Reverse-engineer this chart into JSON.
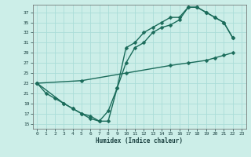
{
  "xlabel": "Humidex (Indice chaleur)",
  "bg_color": "#cceee8",
  "grid_color": "#aaddd8",
  "line_color": "#1a6b5a",
  "markersize": 2.5,
  "linewidth": 1.0,
  "xlim": [
    -0.5,
    23.5
  ],
  "ylim": [
    14.0,
    38.5
  ],
  "xticks": [
    0,
    1,
    2,
    3,
    4,
    5,
    6,
    7,
    8,
    9,
    10,
    11,
    12,
    13,
    14,
    15,
    16,
    17,
    18,
    19,
    20,
    21,
    22,
    23
  ],
  "yticks": [
    15,
    17,
    19,
    21,
    23,
    25,
    27,
    29,
    31,
    33,
    35,
    37
  ],
  "curve1_x": [
    0,
    1,
    2,
    3,
    4,
    5,
    6,
    7,
    8,
    9,
    10,
    11,
    12,
    13,
    14,
    15,
    16,
    17,
    18,
    19,
    20,
    21,
    22
  ],
  "curve1_y": [
    23,
    21,
    20,
    19,
    18,
    17,
    16,
    15.5,
    15.5,
    22,
    30,
    31,
    33,
    34,
    35,
    36,
    36,
    38,
    38,
    37,
    36,
    35,
    32
  ],
  "curve2_x": [
    0,
    3,
    4,
    5,
    6,
    7,
    8,
    9,
    10,
    11,
    12,
    13,
    14,
    15,
    16,
    17,
    18,
    19,
    20,
    21,
    22
  ],
  "curve2_y": [
    23,
    19,
    18,
    17,
    16.5,
    15.5,
    17.5,
    22,
    27,
    30,
    31,
    33,
    34,
    34.5,
    35.5,
    38,
    38,
    37,
    36,
    35,
    32
  ],
  "curve3_x": [
    0,
    5,
    10,
    15,
    17,
    19,
    20,
    21,
    22
  ],
  "curve3_y": [
    23,
    23.5,
    25,
    26.5,
    27,
    27.5,
    28,
    28.5,
    29
  ]
}
